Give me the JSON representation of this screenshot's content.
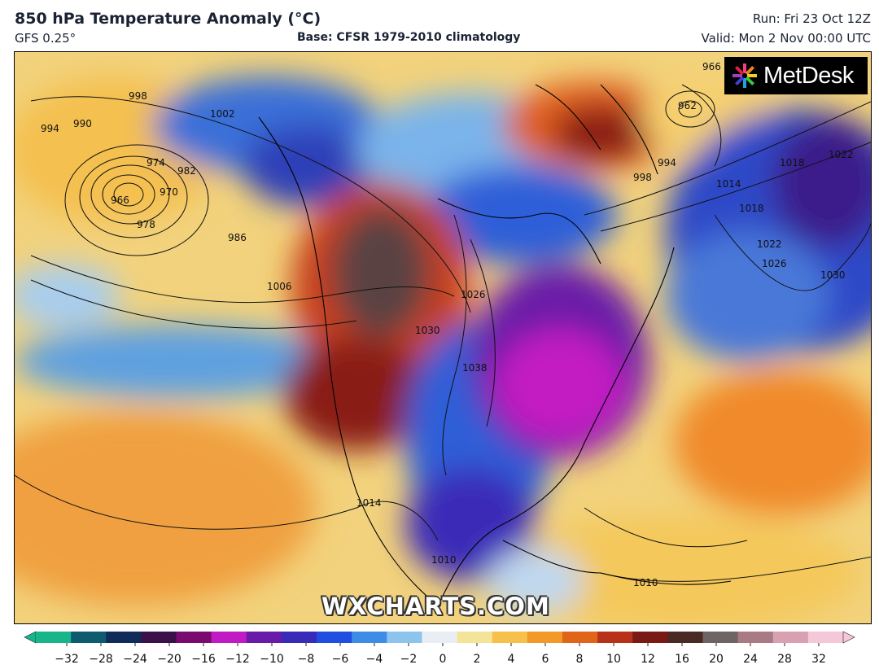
{
  "header": {
    "title": "850 hPa Temperature Anomaly (°C)",
    "model": "GFS 0.25°",
    "base": "Base: CFSR 1979-2010 climatology",
    "run": "Run: Fri 23 Oct 12Z",
    "valid": "Valid: Mon 2 Nov 00:00 UTC"
  },
  "branding": {
    "logo_text": "MetDesk",
    "watermark": "WXCHARTS.COM"
  },
  "colorbar": {
    "ticks": [
      "−32",
      "−28",
      "−24",
      "−20",
      "−16",
      "−12",
      "−10",
      "−8",
      "−6",
      "−4",
      "−2",
      "0",
      "2",
      "4",
      "6",
      "8",
      "10",
      "12",
      "16",
      "20",
      "24",
      "28",
      "32"
    ],
    "colors": [
      "#18b48a",
      "#0e5a6e",
      "#102a5a",
      "#3a0f4a",
      "#7a0a6e",
      "#c21ac2",
      "#6a1aa8",
      "#3a2ab8",
      "#1f4ee0",
      "#3f8ce6",
      "#8cc4ee",
      "#e8eef4",
      "#f4e49a",
      "#f6c04a",
      "#f19a2a",
      "#e0641a",
      "#b8321a",
      "#7a1a14",
      "#4a2a24",
      "#6e6464",
      "#aa7a84",
      "#d8a0b0",
      "#f4c8d8"
    ]
  },
  "isobar_labels": [
    "998",
    "994",
    "990",
    "974",
    "970",
    "966",
    "982",
    "978",
    "986",
    "1006",
    "1002",
    "1026",
    "1030",
    "1038",
    "1014",
    "1010",
    "1022",
    "1018",
    "966",
    "962",
    "994",
    "998",
    "1014",
    "1018",
    "1022",
    "1026",
    "1030",
    "1010"
  ]
}
